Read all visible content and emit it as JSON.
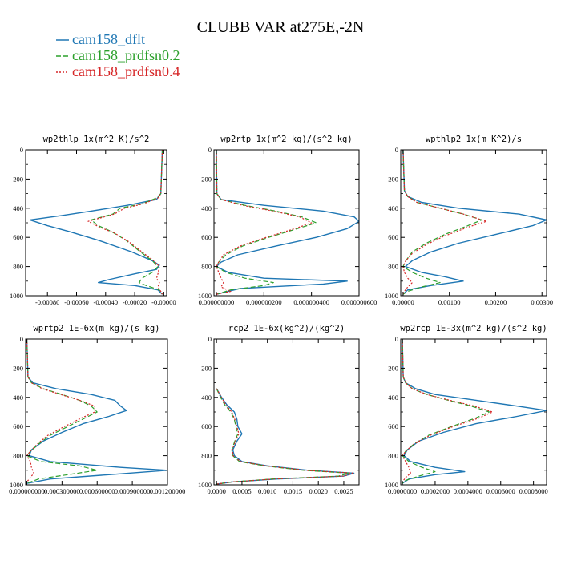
{
  "title": "CLUBB VAR at275E,-2N",
  "colors": {
    "cam158_dflt": "#1f77b4",
    "cam158_prdfsn0.2": "#2ca02c",
    "cam158_prdfsn0.4": "#d62728"
  },
  "legend": [
    {
      "name": "cam158_dflt",
      "style": "solid",
      "color": "#1f77b4"
    },
    {
      "name": "cam158_prdfsn0.2",
      "style": "dashed",
      "color": "#2ca02c"
    },
    {
      "name": "cam158_prdfsn0.4",
      "style": "dotted",
      "color": "#d62728"
    }
  ],
  "chart_data": [
    {
      "type": "line",
      "title": "wp2thlp  1x(m^2 K)/s^2",
      "xlim": [
        -0.00095,
        2e-05
      ],
      "ylim": [
        1000,
        0
      ],
      "xticks": [
        -0.0008,
        -0.0006,
        -0.0004,
        -0.0002,
        0.0
      ],
      "xtick_labels": [
        "-0.00080",
        "-0.00060",
        "-0.00040",
        "-0.00020",
        "-0.00000"
      ],
      "yticks": [
        0,
        200,
        400,
        600,
        800,
        1000
      ],
      "series": [
        {
          "name": "cam158_dflt",
          "y": [
            0,
            300,
            340,
            380,
            420,
            450,
            480,
            520,
            560,
            620,
            700,
            760,
            790,
            820,
            850,
            890,
            910,
            930,
            960,
            990
          ],
          "x": [
            -1e-05,
            -2e-05,
            -5e-05,
            -0.00025,
            -0.0005,
            -0.0007,
            -0.00092,
            -0.0008,
            -0.00065,
            -0.00045,
            -0.00022,
            -8e-05,
            -3e-05,
            -5e-05,
            -0.0002,
            -0.00038,
            -0.00045,
            -0.0002,
            -4e-05,
            -1e-05
          ]
        },
        {
          "name": "cam158_prdfsn0.2",
          "y": [
            0,
            300,
            330,
            370,
            400,
            440,
            480,
            520,
            560,
            620,
            700,
            760,
            800,
            840,
            880,
            910,
            930,
            960,
            990
          ],
          "x": [
            -1e-05,
            -2e-05,
            -5e-05,
            -0.00015,
            -0.0003,
            -0.00035,
            -0.0005,
            -0.00045,
            -0.00036,
            -0.00026,
            -0.00016,
            -8e-05,
            -4e-05,
            -8e-05,
            -0.00015,
            -0.00017,
            -0.00012,
            -3e-05,
            -1e-05
          ]
        },
        {
          "name": "cam158_prdfsn0.4",
          "y": [
            0,
            300,
            330,
            370,
            400,
            440,
            490,
            530,
            570,
            630,
            700,
            760,
            800,
            850,
            880,
            910,
            940,
            970,
            990
          ],
          "x": [
            -1e-05,
            -2e-05,
            -4e-05,
            -0.00014,
            -0.00027,
            -0.00034,
            -0.00052,
            -0.00044,
            -0.00034,
            -0.00024,
            -0.00015,
            -7e-05,
            -3e-05,
            -4e-05,
            -5e-05,
            -3e-05,
            -4e-05,
            -2e-05,
            -1e-05
          ]
        }
      ]
    },
    {
      "type": "line",
      "title": "wp2rtp  1x(m^2 kg)/(s^2 kg)",
      "xlim": [
        -1e-08,
        6e-07
      ],
      "ylim": [
        1000,
        0
      ],
      "xticks": [
        0.0,
        2e-07,
        4e-07,
        6e-07
      ],
      "xtick_labels": [
        "0.000000000",
        "0.000000200",
        "0.000000400",
        "0.000000600"
      ],
      "yticks": [
        0,
        200,
        400,
        600,
        800,
        1000
      ],
      "series": [
        {
          "name": "cam158_dflt",
          "y": [
            0,
            300,
            340,
            380,
            420,
            460,
            490,
            540,
            600,
            660,
            720,
            770,
            800,
            840,
            880,
            900,
            920,
            950,
            990
          ],
          "x": [
            0.0,
            2e-09,
            2e-08,
            2e-07,
            4.5e-07,
            5.8e-07,
            6e-07,
            5.5e-07,
            4.2e-07,
            2.5e-07,
            9e-08,
            2e-08,
            0.0,
            5e-08,
            2e-07,
            5.5e-07,
            4.5e-07,
            1e-07,
            0.0
          ]
        },
        {
          "name": "cam158_prdfsn0.2",
          "y": [
            0,
            300,
            340,
            380,
            420,
            460,
            500,
            540,
            600,
            660,
            720,
            770,
            800,
            840,
            880,
            910,
            930,
            960,
            990
          ],
          "x": [
            0.0,
            2e-09,
            2e-08,
            1.2e-07,
            2.5e-07,
            3.6e-07,
            4.2e-07,
            3.4e-07,
            2.2e-07,
            1.1e-07,
            4e-08,
            1e-08,
            0.0,
            4e-08,
            1.2e-07,
            2.4e-07,
            2e-07,
            6e-08,
            0.0
          ]
        },
        {
          "name": "cam158_prdfsn0.4",
          "y": [
            0,
            300,
            340,
            380,
            420,
            460,
            500,
            540,
            600,
            660,
            720,
            770,
            800,
            840,
            880,
            910,
            940,
            970,
            990
          ],
          "x": [
            0.0,
            2e-09,
            2e-08,
            1.1e-07,
            2.4e-07,
            3.5e-07,
            4e-07,
            3.3e-07,
            2.1e-07,
            1e-07,
            3e-08,
            1e-08,
            0.0,
            1e-08,
            2e-08,
            3e-08,
            2e-08,
            6e-08,
            0.0
          ]
        }
      ]
    },
    {
      "type": "line",
      "title": "wpthlp2  1x(m K^2)/s",
      "xlim": [
        -5e-05,
        0.0031
      ],
      "ylim": [
        1000,
        0
      ],
      "xticks": [
        0.0,
        0.001,
        0.002,
        0.003
      ],
      "xtick_labels": [
        "0.00000",
        "0.00100",
        "0.00200",
        "0.00300"
      ],
      "yticks": [
        0,
        200,
        400,
        600,
        800,
        1000
      ],
      "series": [
        {
          "name": "cam158_dflt",
          "y": [
            0,
            280,
            320,
            360,
            400,
            440,
            480,
            520,
            580,
            640,
            700,
            760,
            800,
            840,
            870,
            900,
            930,
            960,
            990
          ],
          "x": [
            0.0,
            3e-05,
            0.0001,
            0.0004,
            0.0012,
            0.0025,
            0.0031,
            0.0028,
            0.002,
            0.0012,
            0.0006,
            0.0002,
            5e-05,
            0.0004,
            0.0009,
            0.0013,
            0.0006,
            0.0001,
            0.0
          ]
        },
        {
          "name": "cam158_prdfsn0.2",
          "y": [
            0,
            280,
            320,
            360,
            400,
            440,
            480,
            520,
            580,
            640,
            700,
            760,
            800,
            840,
            880,
            910,
            940,
            970,
            990
          ],
          "x": [
            0.0,
            3e-05,
            0.0001,
            0.0003,
            0.0008,
            0.0013,
            0.0017,
            0.0014,
            0.0009,
            0.0005,
            0.0002,
            6e-05,
            0.0,
            0.0002,
            0.0005,
            0.0008,
            0.0004,
            0.0001,
            0.0
          ]
        },
        {
          "name": "cam158_prdfsn0.4",
          "y": [
            0,
            280,
            320,
            360,
            400,
            440,
            490,
            530,
            590,
            650,
            710,
            760,
            800,
            840,
            880,
            910,
            940,
            970,
            990
          ],
          "x": [
            0.0,
            3e-05,
            0.0001,
            0.0003,
            0.0008,
            0.0013,
            0.0018,
            0.0014,
            0.0009,
            0.0005,
            0.0002,
            6e-05,
            0.0,
            3e-05,
            0.0001,
            0.0002,
            0.0001,
            3e-05,
            0.0
          ]
        }
      ]
    },
    {
      "type": "line",
      "title": "wprtp2  1E-6x(m kg)/(s kg)",
      "xlim": [
        -1e-05,
        0.0012
      ],
      "ylim": [
        1000,
        0
      ],
      "xticks": [
        0.0,
        0.0003,
        0.0006,
        0.0009,
        0.0012
      ],
      "xtick_labels": [
        "0.000000000",
        "0.000300000",
        "0.000600000",
        "0.000900000",
        "0.001200000"
      ],
      "yticks": [
        0,
        200,
        400,
        600,
        800,
        1000
      ],
      "series": [
        {
          "name": "cam158_dflt",
          "y": [
            0,
            260,
            300,
            340,
            380,
            420,
            460,
            490,
            530,
            580,
            640,
            700,
            760,
            800,
            840,
            880,
            900,
            930,
            960,
            990
          ],
          "x": [
            0.0,
            1e-05,
            5e-05,
            0.00025,
            0.00055,
            0.00075,
            0.0008,
            0.00085,
            0.0007,
            0.00048,
            0.0003,
            0.00014,
            4e-05,
            2e-05,
            0.0002,
            0.0008,
            0.0012,
            0.0007,
            0.0002,
            0.0
          ]
        },
        {
          "name": "cam158_prdfsn0.2",
          "y": [
            0,
            260,
            300,
            340,
            380,
            420,
            460,
            500,
            540,
            600,
            660,
            720,
            770,
            800,
            840,
            870,
            900,
            930,
            960,
            990
          ],
          "x": [
            0.0,
            1e-05,
            4e-05,
            0.00014,
            0.0003,
            0.00045,
            0.00055,
            0.0006,
            0.0005,
            0.00035,
            0.0002,
            0.0001,
            3e-05,
            0.0,
            0.00012,
            0.00045,
            0.0006,
            0.00035,
            0.0001,
            0.0
          ]
        },
        {
          "name": "cam158_prdfsn0.4",
          "y": [
            0,
            260,
            300,
            340,
            380,
            420,
            460,
            500,
            540,
            600,
            660,
            720,
            770,
            800,
            840,
            880,
            920,
            950,
            980
          ],
          "x": [
            0.0,
            1e-05,
            4e-05,
            0.00013,
            0.00029,
            0.00045,
            0.00058,
            0.00058,
            0.00047,
            0.00032,
            0.00018,
            9e-05,
            3e-05,
            0.0,
            3e-05,
            4e-05,
            6e-05,
            3e-05,
            0.0
          ]
        }
      ]
    },
    {
      "type": "line",
      "title": "rcp2  1E-6x(kg^2)/(kg^2)",
      "xlim": [
        -5e-05,
        0.0028
      ],
      "ylim": [
        1000,
        0
      ],
      "xticks": [
        0.0,
        0.0005,
        0.001,
        0.0015,
        0.002,
        0.0025
      ],
      "xtick_labels": [
        "0.0000",
        "0.0005",
        "0.0010",
        "0.0015",
        "0.0020",
        "0.0025"
      ],
      "yticks": [
        0,
        200,
        400,
        600,
        800,
        1000
      ],
      "series": [
        {
          "name": "cam158_dflt",
          "y": [
            340,
            400,
            450,
            500,
            550,
            600,
            650,
            700,
            760,
            800,
            840,
            870,
            900,
            920,
            940,
            960,
            980,
            995
          ],
          "x": [
            0.0,
            0.0001,
            0.0002,
            0.00035,
            0.0004,
            0.00042,
            0.0005,
            0.0004,
            0.00032,
            0.00035,
            0.0005,
            0.001,
            0.0018,
            0.0027,
            0.0025,
            0.0012,
            0.0003,
            0.0
          ]
        },
        {
          "name": "cam158_prdfsn0.2",
          "y": [
            340,
            400,
            450,
            500,
            550,
            600,
            650,
            700,
            760,
            800,
            840,
            870,
            900,
            920,
            940,
            960,
            980,
            995
          ],
          "x": [
            0.0,
            8e-05,
            0.00016,
            0.00028,
            0.00035,
            0.00038,
            0.00042,
            0.00036,
            0.0003,
            0.00032,
            0.00045,
            0.00095,
            0.0017,
            0.0026,
            0.0024,
            0.0011,
            0.0003,
            0.0
          ]
        },
        {
          "name": "cam158_prdfsn0.4",
          "y": [
            340,
            400,
            450,
            500,
            550,
            600,
            650,
            700,
            760,
            800,
            840,
            870,
            900,
            920,
            940,
            960,
            980,
            995
          ],
          "x": [
            0.0,
            0.0001,
            0.00018,
            0.0003,
            0.00036,
            0.0004,
            0.00044,
            0.00037,
            0.00031,
            0.00033,
            0.00047,
            0.00098,
            0.00175,
            0.0027,
            0.0025,
            0.00115,
            0.0003,
            0.0
          ]
        }
      ]
    },
    {
      "type": "line",
      "title": "wp2rcp  1E-3x(m^2 kg)/(s^2 kg)",
      "xlim": [
        -1e-05,
        0.00088
      ],
      "ylim": [
        1000,
        0
      ],
      "xticks": [
        0.0,
        0.0002,
        0.0004,
        0.0006,
        0.0008
      ],
      "xtick_labels": [
        "0.0000000",
        "0.0002000",
        "0.0004000",
        "0.0006000",
        "0.0008000"
      ],
      "yticks": [
        0,
        200,
        400,
        600,
        800,
        1000
      ],
      "series": [
        {
          "name": "cam158_dflt",
          "y": [
            0,
            260,
            300,
            340,
            380,
            420,
            460,
            490,
            530,
            580,
            640,
            700,
            760,
            800,
            840,
            880,
            910,
            930,
            960,
            990
          ],
          "x": [
            0.0,
            5e-06,
            2e-05,
            8e-05,
            0.0002,
            0.00045,
            0.0007,
            0.00088,
            0.0007,
            0.00045,
            0.00025,
            0.0001,
            3e-05,
            1e-05,
            5e-05,
            0.0002,
            0.00038,
            0.0002,
            4e-05,
            0.0
          ]
        },
        {
          "name": "cam158_prdfsn0.2",
          "y": [
            0,
            260,
            300,
            340,
            380,
            420,
            460,
            500,
            540,
            600,
            660,
            720,
            770,
            800,
            840,
            880,
            910,
            940,
            970,
            990
          ],
          "x": [
            0.0,
            5e-06,
            2e-05,
            6e-05,
            0.00015,
            0.00028,
            0.00042,
            0.00053,
            0.00045,
            0.0003,
            0.00016,
            7e-05,
            2e-05,
            0.0,
            4e-05,
            0.00012,
            0.0002,
            0.0001,
            2e-05,
            0.0
          ]
        },
        {
          "name": "cam158_prdfsn0.4",
          "y": [
            0,
            260,
            300,
            340,
            380,
            420,
            460,
            500,
            540,
            600,
            660,
            720,
            770,
            800,
            840,
            880,
            920,
            950,
            980
          ],
          "x": [
            0.0,
            5e-06,
            2e-05,
            6e-05,
            0.00015,
            0.00029,
            0.00044,
            0.00055,
            0.00047,
            0.00031,
            0.00017,
            7e-05,
            2e-05,
            0.0,
            2e-05,
            4e-05,
            5e-05,
            2e-05,
            0.0
          ]
        }
      ]
    }
  ]
}
